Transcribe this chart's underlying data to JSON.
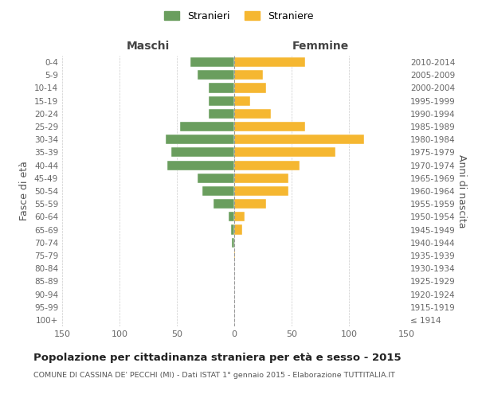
{
  "age_groups": [
    "100+",
    "95-99",
    "90-94",
    "85-89",
    "80-84",
    "75-79",
    "70-74",
    "65-69",
    "60-64",
    "55-59",
    "50-54",
    "45-49",
    "40-44",
    "35-39",
    "30-34",
    "25-29",
    "20-24",
    "15-19",
    "10-14",
    "5-9",
    "0-4"
  ],
  "birth_years": [
    "≤ 1914",
    "1915-1919",
    "1920-1924",
    "1925-1929",
    "1930-1934",
    "1935-1939",
    "1940-1944",
    "1945-1949",
    "1950-1954",
    "1955-1959",
    "1960-1964",
    "1965-1969",
    "1970-1974",
    "1975-1979",
    "1980-1984",
    "1985-1989",
    "1990-1994",
    "1995-1999",
    "2000-2004",
    "2005-2009",
    "2010-2014"
  ],
  "males": [
    0,
    0,
    0,
    0,
    0,
    0,
    2,
    3,
    5,
    18,
    28,
    32,
    58,
    55,
    60,
    47,
    22,
    22,
    22,
    32,
    38
  ],
  "females": [
    0,
    0,
    0,
    0,
    0,
    1,
    0,
    7,
    9,
    28,
    47,
    47,
    57,
    88,
    113,
    62,
    32,
    14,
    28,
    25,
    62
  ],
  "male_color": "#6a9e5e",
  "female_color": "#f5b731",
  "title": "Popolazione per cittadinanza straniera per età e sesso - 2015",
  "subtitle": "COMUNE DI CASSINA DE' PECCHI (MI) - Dati ISTAT 1° gennaio 2015 - Elaborazione TUTTITALIA.IT",
  "ylabel_left": "Fasce di età",
  "ylabel_right": "Anni di nascita",
  "xlabel_left": "Maschi",
  "xlabel_right": "Femmine",
  "legend_male": "Stranieri",
  "legend_female": "Straniere",
  "xlim": 150,
  "background_color": "#ffffff",
  "grid_color": "#cccccc"
}
